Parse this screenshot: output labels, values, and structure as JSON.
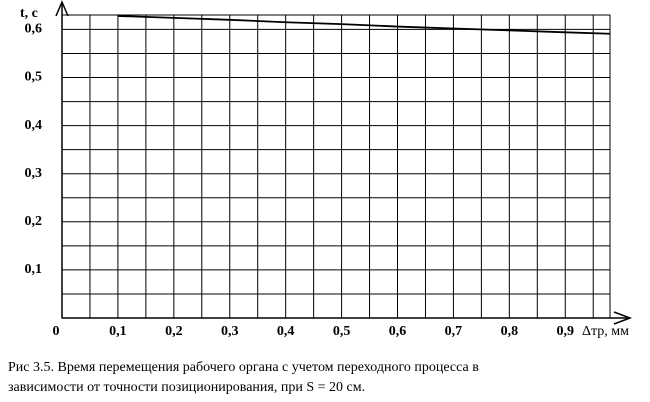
{
  "chart_data": {
    "type": "line",
    "y_label": "t, с",
    "x_label": "Δтр, мм",
    "caption": [
      "Рис 3.5. Время перемещения рабочего органа с учетом переходного процесса в",
      "зависимости от точности позиционирования, при S = 20 см."
    ],
    "x": [
      0.1,
      0.2,
      0.3,
      0.4,
      0.5,
      0.6,
      0.7,
      0.8,
      0.9,
      0.98
    ],
    "series": [
      {
        "color": "#000000",
        "values": [
          0.628,
          0.624,
          0.62,
          0.615,
          0.611,
          0.606,
          0.602,
          0.598,
          0.594,
          0.591
        ]
      }
    ],
    "xlim": [
      0,
      0.98
    ],
    "ylim": [
      0,
      0.63
    ],
    "xticks": [
      0,
      {
        "value": 0.1,
        "label": "0,1"
      },
      {
        "value": 0.2,
        "label": "0,2"
      },
      {
        "value": 0.3,
        "label": "0,3"
      },
      {
        "value": 0.4,
        "label": "0,4"
      },
      {
        "value": 0.5,
        "label": "0,5"
      },
      {
        "value": 0.6,
        "label": "0,6"
      },
      {
        "value": 0.7,
        "label": "0,7"
      },
      {
        "value": 0.8,
        "label": "0,8"
      },
      {
        "value": 0.9,
        "label": "0,9"
      }
    ],
    "yticks": [
      {
        "value": 0.1,
        "label": "0,1"
      },
      {
        "value": 0.2,
        "label": "0,2"
      },
      {
        "value": 0.3,
        "label": "0,3"
      },
      {
        "value": 0.4,
        "label": "0,4"
      },
      {
        "value": 0.5,
        "label": "0,5"
      },
      {
        "value": 0.6,
        "label": "0,6"
      }
    ],
    "minor_xticks": [
      0.05,
      0.15,
      0.25,
      0.35,
      0.45,
      0.55,
      0.65,
      0.75,
      0.85,
      0.95
    ],
    "minor_yticks": [
      0.05,
      0.15,
      0.25,
      0.35,
      0.45,
      0.55
    ],
    "grid": true
  }
}
